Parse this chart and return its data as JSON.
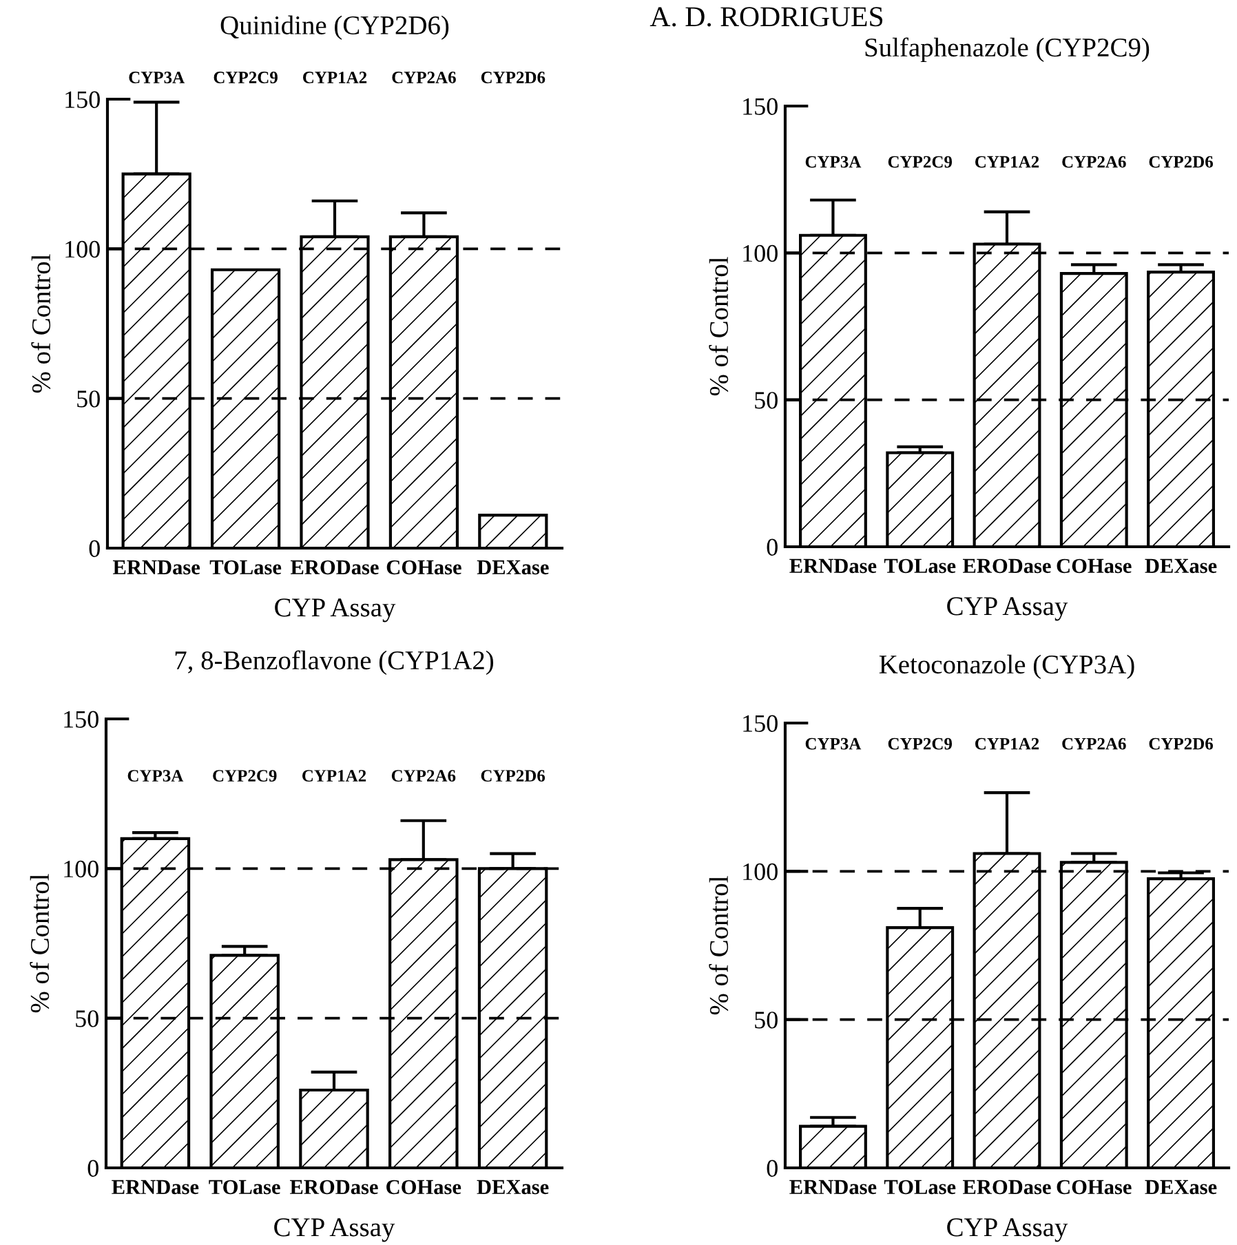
{
  "chart_data": [
    {
      "type": "bar",
      "title": "Quinidine (CYP2D6)",
      "xlabel": "CYP Assay",
      "ylabel": "% of Control",
      "categories": [
        "ERNDase",
        "TOLase",
        "ERODase",
        "COHase",
        "DEXase"
      ],
      "values": [
        125,
        93,
        104,
        104,
        11
      ],
      "errors": [
        [
          125,
          149
        ],
        null,
        [
          104,
          116
        ],
        [
          104,
          112
        ],
        null
      ],
      "color": "#ffffff",
      "ylim": [
        0,
        150
      ],
      "yticks": [
        0,
        50,
        100,
        150
      ],
      "grid": false,
      "legend": false,
      "ref_lines": [
        {
          "axis": "y",
          "value": 50,
          "line_style": "dashed"
        },
        {
          "axis": "y",
          "value": 100,
          "line_style": "dashed"
        }
      ],
      "annotations": [
        "A. D. RODRIGUES",
        "CYP3A",
        "CYP2C9",
        "CYP1A2",
        "CYP2A6",
        "CYP2D6"
      ]
    },
    {
      "type": "bar",
      "title": "Sulfaphenazole (CYP2C9)",
      "xlabel": "CYP Assay",
      "ylabel": "% of Control",
      "categories": [
        "ERNDase",
        "TOLase",
        "ERODase",
        "COHase",
        "DEXase"
      ],
      "values": [
        106,
        32,
        103,
        93,
        93.5
      ],
      "errors": [
        [
          106,
          118
        ],
        [
          32,
          34
        ],
        [
          103,
          114
        ],
        [
          93,
          96
        ],
        [
          93.5,
          96
        ]
      ],
      "color": "#ffffff",
      "ylim": [
        0,
        150
      ],
      "yticks": [
        0,
        50,
        100,
        150
      ],
      "grid": false,
      "legend": false,
      "ref_lines": [
        {
          "axis": "y",
          "value": 50,
          "line_style": "dashed"
        },
        {
          "axis": "y",
          "value": 100,
          "line_style": "dashed"
        }
      ],
      "annotations": [
        "CYP3A",
        "CYP2C9",
        "CYP1A2",
        "CYP2A6",
        "CYP2D6"
      ]
    },
    {
      "type": "bar",
      "title": "7, 8-Benzoflavone (CYP1A2)",
      "xlabel": "CYP Assay",
      "ylabel": "% of Control",
      "categories": [
        "ERNDase",
        "TOLase",
        "ERODase",
        "COHase",
        "DEXase"
      ],
      "values": [
        110,
        71,
        26,
        103,
        100
      ],
      "errors": [
        [
          110,
          112
        ],
        [
          71,
          74
        ],
        [
          26,
          32
        ],
        [
          103,
          116
        ],
        [
          100,
          105
        ]
      ],
      "color": "#ffffff",
      "ylim": [
        0,
        150
      ],
      "yticks": [
        0,
        50,
        100,
        150
      ],
      "grid": false,
      "legend": false,
      "ref_lines": [
        {
          "axis": "y",
          "value": 50,
          "line_style": "dashed"
        },
        {
          "axis": "y",
          "value": 100,
          "line_style": "dashed"
        }
      ],
      "annotations": [
        "CYP3A",
        "CYP2C9",
        "CYP1A2",
        "CYP2A6",
        "CYP2D6"
      ]
    },
    {
      "type": "bar",
      "title": "Ketoconazole (CYP3A)",
      "xlabel": "CYP Assay",
      "ylabel": "% of Control",
      "categories": [
        "ERNDase",
        "TOLase",
        "ERODase",
        "COHase",
        "DEXase"
      ],
      "values": [
        14,
        81,
        106,
        103,
        97.5
      ],
      "errors": [
        [
          14,
          17
        ],
        [
          81,
          87.5
        ],
        [
          106,
          126.5
        ],
        [
          103,
          106
        ],
        [
          97.5,
          99.5
        ]
      ],
      "color": "#ffffff",
      "ylim": [
        0,
        150
      ],
      "yticks": [
        0,
        50,
        100,
        150
      ],
      "grid": false,
      "legend": false,
      "ref_lines": [
        {
          "axis": "y",
          "value": 50,
          "line_style": "dashed"
        },
        {
          "axis": "y",
          "value": 100,
          "line_style": "dashed"
        }
      ],
      "annotations": [
        "CYP3A",
        "CYP2C9",
        "CYP1A2",
        "CYP2A6",
        "CYP2D6"
      ]
    }
  ]
}
